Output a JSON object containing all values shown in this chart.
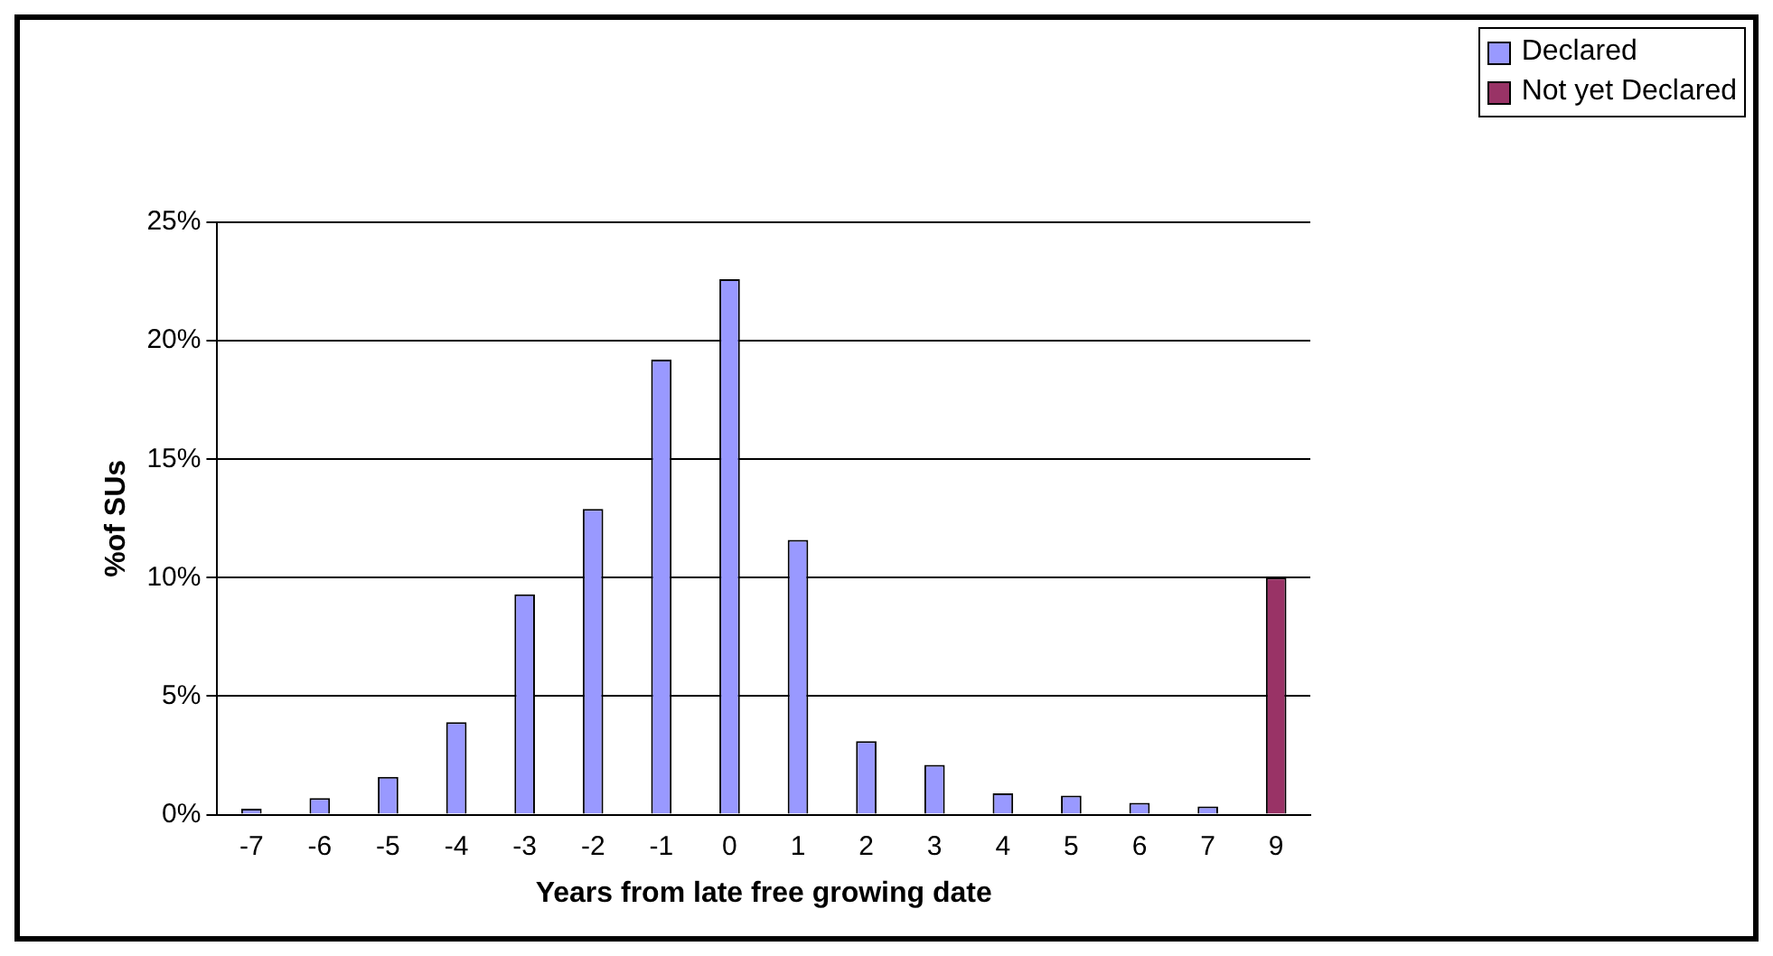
{
  "chart_data": {
    "type": "bar",
    "xlabel": "Years from late free growing date",
    "ylabel": "%of SUs",
    "categories": [
      "-7",
      "-6",
      "-5",
      "-4",
      "-3",
      "-2",
      "-1",
      "0",
      "1",
      "2",
      "3",
      "4",
      "5",
      "6",
      "7",
      "9"
    ],
    "series": [
      {
        "name": "Declared",
        "color": "#9999ff",
        "values": [
          0.25,
          0.7,
          1.6,
          3.9,
          9.3,
          12.9,
          19.2,
          22.6,
          11.6,
          3.1,
          2.1,
          0.9,
          0.8,
          0.5,
          0.35,
          null
        ]
      },
      {
        "name": "Not yet Declared",
        "color": "#993366",
        "values": [
          null,
          null,
          null,
          null,
          null,
          null,
          null,
          null,
          null,
          null,
          null,
          null,
          null,
          null,
          null,
          10
        ]
      }
    ],
    "ylim": [
      0,
      25
    ],
    "yticks": [
      {
        "value": 0,
        "label": "0%"
      },
      {
        "value": 5,
        "label": "5%"
      },
      {
        "value": 10,
        "label": "10%"
      },
      {
        "value": 15,
        "label": "15%"
      },
      {
        "value": 20,
        "label": "20%"
      },
      {
        "value": 25,
        "label": "25%"
      }
    ],
    "grid": "y",
    "legend": "top right"
  }
}
